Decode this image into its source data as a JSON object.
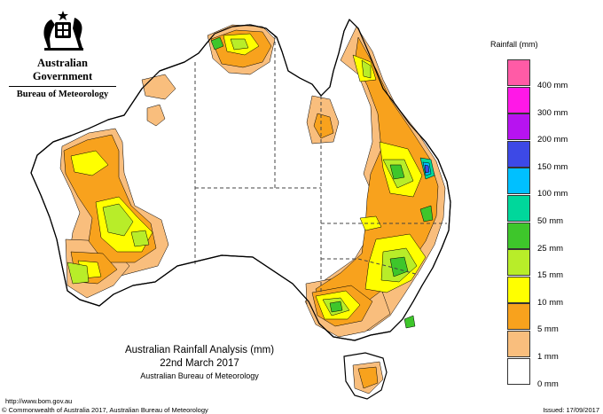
{
  "header": {
    "government": "Australian Government",
    "bureau": "Bureau of Meteorology"
  },
  "map": {
    "colors": {
      "land": "#ffffff",
      "outline": "#000000",
      "state_border": "#444444",
      "r1": "#f9be7d",
      "r5": "#f8a21d",
      "r10": "#ffff00",
      "r15": "#b8ed29",
      "r25": "#3ec62b",
      "r50": "#00d79b",
      "r100": "#00c0ff",
      "r150": "#3d49e6"
    }
  },
  "legend": {
    "title": "Rainfall (mm)",
    "items": [
      {
        "label": "400 mm",
        "color": "#ff5ba6"
      },
      {
        "label": "300 mm",
        "color": "#ff18e7"
      },
      {
        "label": "200 mm",
        "color": "#b713f0"
      },
      {
        "label": "150 mm",
        "color": "#3d49e6"
      },
      {
        "label": "100 mm",
        "color": "#00c0ff"
      },
      {
        "label": "50 mm",
        "color": "#00d79b"
      },
      {
        "label": "25 mm",
        "color": "#3ec62b"
      },
      {
        "label": "15 mm",
        "color": "#b8ed29"
      },
      {
        "label": "10 mm",
        "color": "#ffff00"
      },
      {
        "label": "5 mm",
        "color": "#f8a21d"
      },
      {
        "label": "1 mm",
        "color": "#f9be7d"
      },
      {
        "label": "0 mm",
        "color": "#ffffff"
      }
    ]
  },
  "title": {
    "line1": "Australian Rainfall Analysis (mm)",
    "line2": "22nd March 2017",
    "line3": "Australian Bureau of Meteorology"
  },
  "footer": {
    "url": "http://www.bom.gov.au",
    "copyright": "© Commonwealth of Australia 2017, Australian Bureau of Meteorology",
    "issued": "Issued: 17/09/2017"
  }
}
